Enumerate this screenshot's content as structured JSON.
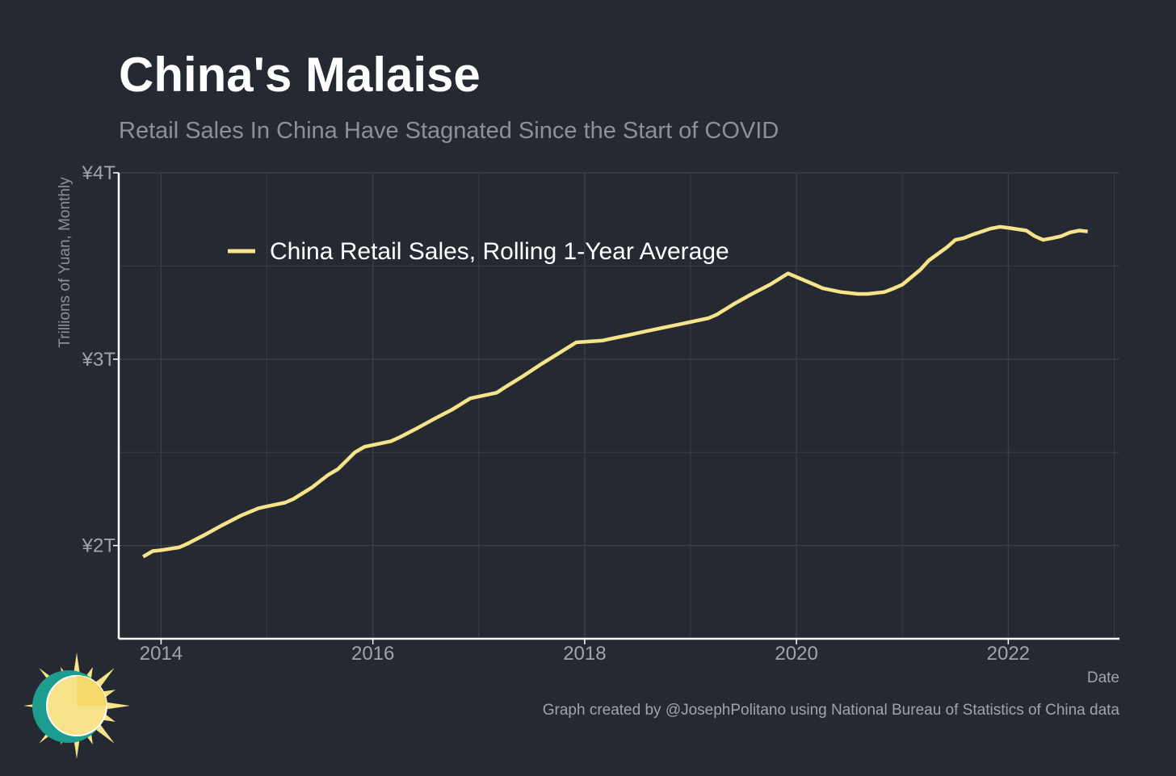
{
  "header": {
    "title": "China's Malaise",
    "subtitle": "Retail Sales In China Have Stagnated Since the Start of COVID"
  },
  "footer": {
    "caption": "Graph created by @JosephPolitano using National Bureau of Statistics of China data"
  },
  "logo": {
    "icon": "sun-logo-icon"
  },
  "colors": {
    "background": "#252932",
    "line": "#f7e48a",
    "grid": "#3d414a",
    "axis": "#ffffff",
    "tick_text": "#a3a3a8",
    "axis_title": "#8f8f94"
  },
  "chart_data": {
    "type": "line",
    "title": "China's Malaise",
    "subtitle": "Retail Sales In China Have Stagnated Since the Start of COVID",
    "xlabel": "Date",
    "ylabel": "Trillions of Yuan, Monthly",
    "xlim": [
      2013.6,
      2023.05
    ],
    "ylim": [
      1.5,
      4.0
    ],
    "x_ticks": [
      2014,
      2016,
      2018,
      2020,
      2022
    ],
    "x_tick_labels": [
      "2014",
      "2016",
      "2018",
      "2020",
      "2022"
    ],
    "y_ticks": [
      2,
      3,
      4
    ],
    "y_tick_labels": [
      "¥2T",
      "¥3T",
      "¥4T"
    ],
    "grid": true,
    "legend_position": "top-left",
    "series": [
      {
        "name": "China Retail Sales, Rolling 1-Year Average",
        "color": "#f7e48a",
        "x": [
          2013.83,
          2013.92,
          2014.0,
          2014.17,
          2014.25,
          2014.42,
          2014.58,
          2014.75,
          2014.92,
          2015.0,
          2015.17,
          2015.25,
          2015.42,
          2015.58,
          2015.67,
          2015.83,
          2015.92,
          2016.17,
          2016.25,
          2016.42,
          2016.58,
          2016.75,
          2016.92,
          2017.17,
          2017.25,
          2017.42,
          2017.58,
          2017.75,
          2017.92,
          2018.17,
          2018.25,
          2018.42,
          2018.58,
          2018.75,
          2018.92,
          2019.17,
          2019.25,
          2019.42,
          2019.58,
          2019.75,
          2019.92,
          2020.17,
          2020.25,
          2020.42,
          2020.58,
          2020.67,
          2020.83,
          2020.92,
          2021.0,
          2021.17,
          2021.25,
          2021.42,
          2021.5,
          2021.58,
          2021.67,
          2021.83,
          2021.92,
          2022.0,
          2022.17,
          2022.25,
          2022.33,
          2022.42,
          2022.5,
          2022.58,
          2022.67,
          2022.75
        ],
        "values": [
          1.94,
          1.97,
          1.975,
          1.99,
          2.01,
          2.06,
          2.11,
          2.16,
          2.2,
          2.21,
          2.23,
          2.25,
          2.31,
          2.38,
          2.41,
          2.5,
          2.53,
          2.56,
          2.58,
          2.63,
          2.68,
          2.73,
          2.79,
          2.82,
          2.85,
          2.91,
          2.97,
          3.03,
          3.09,
          3.1,
          3.11,
          3.13,
          3.15,
          3.17,
          3.19,
          3.22,
          3.24,
          3.3,
          3.35,
          3.4,
          3.46,
          3.4,
          3.38,
          3.36,
          3.35,
          3.35,
          3.36,
          3.38,
          3.4,
          3.48,
          3.53,
          3.6,
          3.64,
          3.65,
          3.67,
          3.7,
          3.71,
          3.705,
          3.69,
          3.66,
          3.64,
          3.65,
          3.66,
          3.68,
          3.69,
          3.685
        ]
      }
    ]
  }
}
